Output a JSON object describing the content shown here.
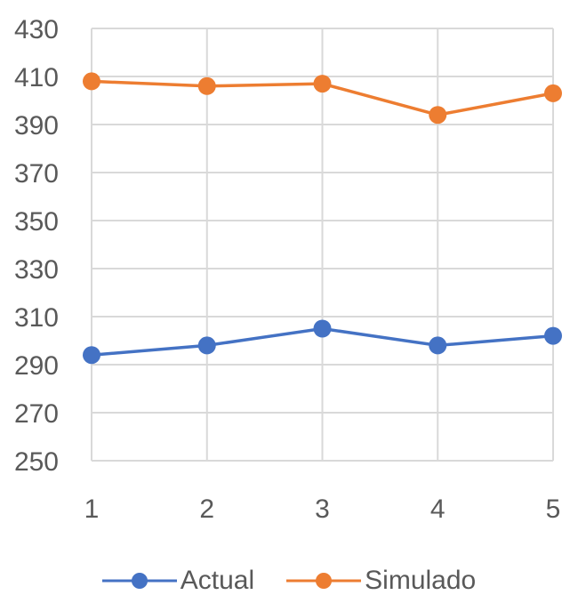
{
  "chart_data": {
    "type": "line",
    "title": "",
    "xlabel": "",
    "ylabel": "",
    "x": [
      1,
      2,
      3,
      4,
      5
    ],
    "categories": [
      "1",
      "2",
      "3",
      "4",
      "5"
    ],
    "ylim": [
      250,
      430
    ],
    "yticks": [
      250,
      270,
      290,
      310,
      330,
      350,
      370,
      390,
      410,
      430
    ],
    "grid": true,
    "legend_position": "bottom",
    "series": [
      {
        "name": "Actual",
        "color": "#4472C4",
        "values": [
          294,
          298,
          305,
          298,
          302
        ]
      },
      {
        "name": "Simulado",
        "color": "#ED7D31",
        "values": [
          408,
          406,
          407,
          394,
          403
        ]
      }
    ]
  },
  "legend": {
    "items": [
      {
        "label": "Actual",
        "color": "#4472C4"
      },
      {
        "label": "Simulado",
        "color": "#ED7D31"
      }
    ]
  }
}
